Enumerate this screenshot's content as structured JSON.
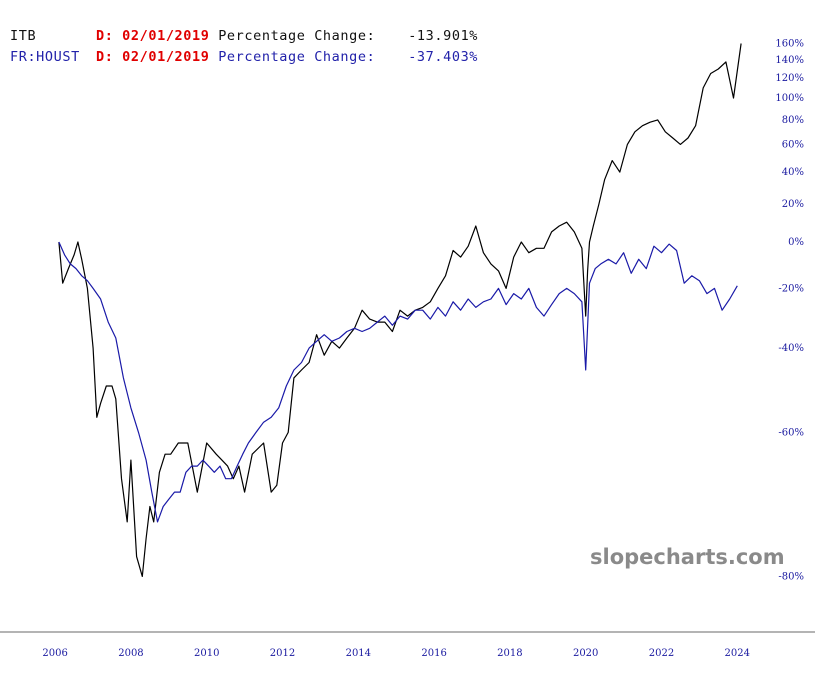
{
  "header": {
    "row1": {
      "symbol": "ITB",
      "date": "D: 02/01/2019",
      "label": "Percentage Change:",
      "value": "-13.901%"
    },
    "row2": {
      "symbol": "FR:HOUST",
      "date": "D: 02/01/2019",
      "label": "Percentage Change:",
      "value": "-37.403%"
    }
  },
  "watermark": "slopecharts.com",
  "colors": {
    "ITB": "#000000",
    "FR:HOUST": "#1a1aa8",
    "axis_text": "#1a1aa0",
    "date_text": "#e00000"
  },
  "chart_data": {
    "type": "line",
    "y_scale": "log (price ratio)",
    "y_ticks": [
      {
        "label": "160%",
        "value": 160
      },
      {
        "label": "140%",
        "value": 140
      },
      {
        "label": "120%",
        "value": 120
      },
      {
        "label": "100%",
        "value": 100
      },
      {
        "label": "80%",
        "value": 80
      },
      {
        "label": "60%",
        "value": 60
      },
      {
        "label": "40%",
        "value": 40
      },
      {
        "label": "20%",
        "value": 20
      },
      {
        "label": "0%",
        "value": 0
      },
      {
        "label": "-20%",
        "value": -20
      },
      {
        "label": "-40%",
        "value": -40
      },
      {
        "label": "-60%",
        "value": -60
      },
      {
        "label": "-80%",
        "value": -80
      }
    ],
    "x_ticks": [
      "2006",
      "2008",
      "2010",
      "2012",
      "2014",
      "2016",
      "2018",
      "2020",
      "2022",
      "2024"
    ],
    "ylim": [
      -82,
      165
    ],
    "xlim": [
      2005.6,
      2024.6
    ],
    "series": [
      {
        "name": "ITB",
        "x": [
          2006.1,
          2006.2,
          2006.35,
          2006.5,
          2006.6,
          2006.7,
          2006.85,
          2007.0,
          2007.1,
          2007.2,
          2007.35,
          2007.5,
          2007.6,
          2007.75,
          2007.9,
          2008.0,
          2008.15,
          2008.3,
          2008.4,
          2008.5,
          2008.6,
          2008.75,
          2008.9,
          2009.05,
          2009.25,
          2009.5,
          2009.75,
          2010.0,
          2010.25,
          2010.4,
          2010.55,
          2010.7,
          2010.85,
          2011.0,
          2011.2,
          2011.5,
          2011.7,
          2011.85,
          2012.0,
          2012.15,
          2012.3,
          2012.5,
          2012.7,
          2012.9,
          2013.1,
          2013.3,
          2013.5,
          2013.7,
          2013.9,
          2014.1,
          2014.3,
          2014.5,
          2014.7,
          2014.9,
          2015.1,
          2015.3,
          2015.5,
          2015.7,
          2015.9,
          2016.1,
          2016.3,
          2016.5,
          2016.7,
          2016.9,
          2017.1,
          2017.3,
          2017.5,
          2017.7,
          2017.9,
          2018.1,
          2018.3,
          2018.5,
          2018.7,
          2018.9,
          2019.1,
          2019.3,
          2019.5,
          2019.7,
          2019.9,
          2020.0,
          2020.05,
          2020.1,
          2020.2,
          2020.35,
          2020.5,
          2020.7,
          2020.9,
          2021.1,
          2021.3,
          2021.5,
          2021.7,
          2021.9,
          2022.1,
          2022.3,
          2022.5,
          2022.7,
          2022.9,
          2023.1,
          2023.3,
          2023.5,
          2023.7,
          2023.9,
          2024.1
        ],
        "y": [
          0,
          -18,
          -12,
          -6,
          0,
          -8,
          -20,
          -40,
          -57,
          -54,
          -50,
          -50,
          -53,
          -68,
          -74,
          -65,
          -78,
          -80,
          -76,
          -72,
          -74,
          -67,
          -64,
          -64,
          -62,
          -62,
          -70,
          -62,
          -64,
          -65,
          -66,
          -68,
          -66,
          -70,
          -64,
          -62,
          -70,
          -69,
          -62,
          -60,
          -48,
          -46,
          -44,
          -36,
          -42,
          -38,
          -40,
          -37,
          -34,
          -28,
          -31,
          -32,
          -32,
          -35,
          -28,
          -30,
          -28,
          -27,
          -25,
          -20,
          -15,
          -4,
          -7,
          -2,
          8,
          -5,
          -10,
          -13,
          -20,
          -7,
          0,
          -5,
          -3,
          -3,
          5,
          8,
          10,
          5,
          -3,
          -30,
          -13,
          0,
          8,
          20,
          35,
          48,
          40,
          60,
          70,
          75,
          78,
          80,
          70,
          65,
          60,
          65,
          75,
          110,
          125,
          130,
          138,
          100,
          160
        ]
      },
      {
        "name": "FR:HOUST",
        "x": [
          2006.1,
          2006.25,
          2006.4,
          2006.55,
          2006.7,
          2006.85,
          2007.0,
          2007.2,
          2007.4,
          2007.6,
          2007.8,
          2008.0,
          2008.2,
          2008.4,
          2008.55,
          2008.7,
          2008.85,
          2009.0,
          2009.15,
          2009.3,
          2009.45,
          2009.6,
          2009.75,
          2009.9,
          2010.05,
          2010.2,
          2010.35,
          2010.5,
          2010.65,
          2010.8,
          2010.95,
          2011.1,
          2011.3,
          2011.5,
          2011.7,
          2011.9,
          2012.1,
          2012.3,
          2012.5,
          2012.7,
          2012.9,
          2013.1,
          2013.3,
          2013.5,
          2013.7,
          2013.9,
          2014.1,
          2014.3,
          2014.5,
          2014.7,
          2014.9,
          2015.1,
          2015.3,
          2015.5,
          2015.7,
          2015.9,
          2016.1,
          2016.3,
          2016.5,
          2016.7,
          2016.9,
          2017.1,
          2017.3,
          2017.5,
          2017.7,
          2017.9,
          2018.1,
          2018.3,
          2018.5,
          2018.7,
          2018.9,
          2019.1,
          2019.3,
          2019.5,
          2019.7,
          2019.9,
          2020.0,
          2020.1,
          2020.25,
          2020.4,
          2020.6,
          2020.8,
          2021.0,
          2021.2,
          2021.4,
          2021.6,
          2021.8,
          2022.0,
          2022.2,
          2022.4,
          2022.6,
          2022.8,
          2023.0,
          2023.2,
          2023.4,
          2023.6,
          2023.8,
          2024.0
        ],
        "y": [
          0,
          -6,
          -10,
          -12,
          -15,
          -17,
          -20,
          -24,
          -32,
          -37,
          -48,
          -55,
          -60,
          -65,
          -70,
          -74,
          -72,
          -71,
          -70,
          -70,
          -67,
          -66,
          -66,
          -65,
          -66,
          -67,
          -66,
          -68,
          -68,
          -66,
          -64,
          -62,
          -60,
          -58,
          -57,
          -55,
          -50,
          -46,
          -44,
          -40,
          -38,
          -36,
          -38,
          -37,
          -35,
          -34,
          -35,
          -34,
          -32,
          -30,
          -33,
          -30,
          -31,
          -28,
          -28,
          -31,
          -27,
          -30,
          -25,
          -28,
          -24,
          -27,
          -25,
          -24,
          -20,
          -26,
          -22,
          -24,
          -20,
          -27,
          -30,
          -26,
          -22,
          -20,
          -22,
          -25,
          -46,
          -18,
          -12,
          -10,
          -8,
          -10,
          -5,
          -14,
          -8,
          -12,
          -2,
          -5,
          -1,
          -4,
          -18,
          -15,
          -17,
          -22,
          -20,
          -28,
          -24,
          -19
        ]
      }
    ],
    "legend": "top-left"
  }
}
